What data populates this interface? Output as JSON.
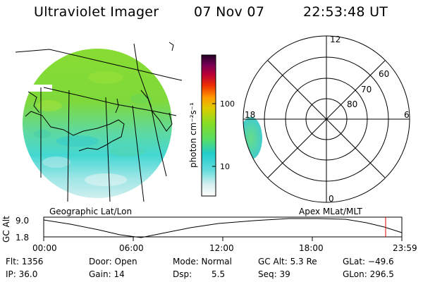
{
  "header": {
    "title": "Ultraviolet Imager",
    "date": "07 Nov 07",
    "time": "22:53:48 UT"
  },
  "colorbar": {
    "unit_label": "photon cm⁻²s⁻¹",
    "ticks": [
      "100",
      "10"
    ]
  },
  "polar": {
    "mlt_labels": {
      "top": "12",
      "left": "18",
      "right": "6",
      "bottom": "0"
    },
    "lat_labels": [
      "60",
      "70",
      "80"
    ]
  },
  "panels": {
    "geo_label": "Geographic Lat/Lon",
    "apex_label": "Apex MLat/MLT"
  },
  "altitude_plot": {
    "y_label": "GC Alt",
    "y_ticks": [
      "9.0",
      "1.8"
    ],
    "x_ticks": [
      "00:00",
      "06:00",
      "12:00",
      "18:00",
      "23:59"
    ],
    "current_marker_color": "#e00000"
  },
  "info": {
    "flt": "Flt: 1356",
    "ip": "IP: 36.0",
    "door": "Door: Open",
    "gain": "Gain: 14",
    "mode": "Mode: Normal",
    "dsp_label": "Dsp:",
    "dsp_value": "5.5",
    "gc_alt": "GC Alt: 5.3 Re",
    "seq": "Seq: 39",
    "glat": "GLat: −49.6",
    "glon": "GLon: 296.5"
  }
}
